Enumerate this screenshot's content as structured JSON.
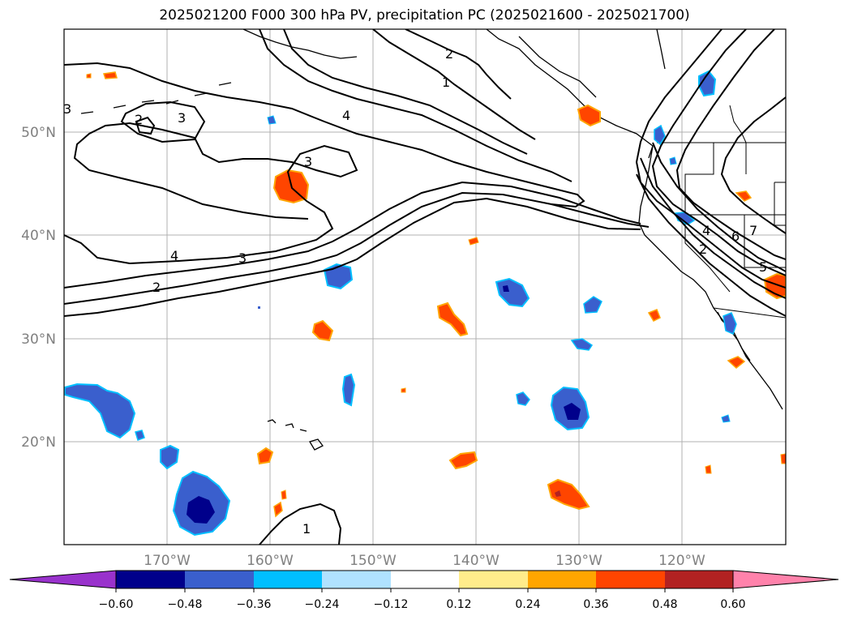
{
  "title": "2025021200 F000 300 hPa PV, precipitation PC (2025021600 - 2025021700)",
  "map": {
    "lat_labels": [
      "50°N",
      "40°N",
      "30°N",
      "20°N"
    ],
    "lon_labels": [
      "170°W",
      "160°W",
      "150°W",
      "140°W",
      "130°W",
      "120°W"
    ],
    "pv_contour_labels": [
      "2",
      "3",
      "3",
      "4",
      "3",
      "4",
      "2",
      "1",
      "2",
      "3",
      "1",
      "4",
      "6",
      "7",
      "5",
      "2"
    ]
  },
  "colorbar": {
    "ticks": [
      "−0.60",
      "−0.48",
      "−0.36",
      "−0.24",
      "−0.12",
      "0.12",
      "0.24",
      "0.36",
      "0.48",
      "0.60"
    ],
    "colors": [
      "#9932cc",
      "#00008b",
      "#3a5fcd",
      "#00bfff",
      "#b0e2ff",
      "#ffffff",
      "#ffec8b",
      "#ffa500",
      "#ff4500",
      "#b22222",
      "#ff82ab"
    ]
  }
}
